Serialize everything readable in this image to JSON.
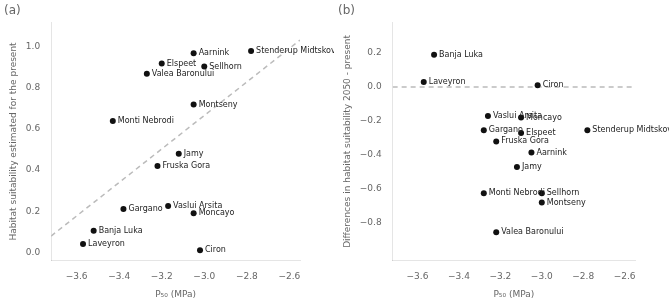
{
  "chart_data": [
    {
      "type": "scatter",
      "title": "(a)",
      "x_label": "P₅₀ (MPa)",
      "y_label": "Habitat suitability estimated for the present",
      "x": [
        -3.05,
        -2.78,
        -3.2,
        -3.0,
        -3.27,
        -3.05,
        -3.43,
        -3.12,
        -3.22,
        -3.17,
        -3.38,
        -3.05,
        -3.52,
        -3.57,
        -3.02
      ],
      "values": [
        0.97,
        0.98,
        0.92,
        0.905,
        0.87,
        0.72,
        0.64,
        0.48,
        0.42,
        0.225,
        0.21,
        0.19,
        0.105,
        0.04,
        0.01
      ],
      "annotations": [
        "Aarnink",
        "Stenderup Midtskov",
        "Elspeet",
        "Sellhorn",
        "Valea Baronului",
        "Montseny",
        "Monti Nebrodi",
        "Jamy",
        "Fruska Gora",
        "Vaslui Arsita",
        "Gargano",
        "Moncayo",
        "Banja Luka",
        "Laveyron",
        "Ciron"
      ],
      "color": "#111111",
      "marker": "circle",
      "trendline": {
        "x": [
          -3.72,
          -2.55
        ],
        "y": [
          0.0787,
          1.0336
        ],
        "color": "#bbbbbb",
        "line_style": "dashed"
      },
      "xlim": [
        -3.72,
        -2.55
      ],
      "ylim": [
        -0.04,
        1.12
      ],
      "xticks": [
        {
          "value": -3.6,
          "label": "−3.6"
        },
        {
          "value": -3.4,
          "label": "−3.4"
        },
        {
          "value": -3.2,
          "label": "−3.2"
        },
        {
          "value": -3.0,
          "label": "−3.0"
        },
        {
          "value": -2.8,
          "label": "−2.8"
        },
        {
          "value": -2.6,
          "label": "−2.6"
        }
      ],
      "yticks": [
        {
          "value": 0.0,
          "label": "0.0"
        },
        {
          "value": 0.2,
          "label": "0.2"
        },
        {
          "value": 0.4,
          "label": "0.4"
        },
        {
          "value": 0.6,
          "label": "0.6"
        },
        {
          "value": 0.8,
          "label": "0.8"
        },
        {
          "value": 1.0,
          "label": "1.0"
        }
      ],
      "grid": false
    },
    {
      "type": "scatter",
      "title": "(b)",
      "x_label": "P₅₀ (MPa)",
      "y_label": "Differences in habitat suitability 2050 - present",
      "x": [
        -3.52,
        -3.57,
        -3.02,
        -3.26,
        -3.1,
        -3.28,
        -3.1,
        -3.22,
        -3.05,
        -2.78,
        -3.12,
        -3.28,
        -3.0,
        -3.0,
        -3.22
      ],
      "values": [
        0.19,
        0.03,
        0.01,
        -0.17,
        -0.18,
        -0.255,
        -0.27,
        -0.32,
        -0.385,
        -0.255,
        -0.47,
        -0.625,
        -0.625,
        -0.68,
        -0.855
      ],
      "annotations": [
        "Banja Luka",
        "Laveyron",
        "Ciron",
        "Vaslui Arsita",
        "Moncayo",
        "Gargano",
        "Elspeet",
        "Fruska Gora",
        "Aarnink",
        "Stenderup Midtskov",
        "Jamy",
        "Monti Nebrodi",
        "Sellhorn",
        "Montseny",
        "Valea Baronului"
      ],
      "color": "#111111",
      "marker": "circle",
      "reference_line": {
        "y": 0,
        "color": "#bbbbbb",
        "line_style": "dashed"
      },
      "xlim": [
        -3.72,
        -2.55
      ],
      "ylim": [
        -1.02,
        0.38
      ],
      "xticks": [
        {
          "value": -3.6,
          "label": "−3.6"
        },
        {
          "value": -3.4,
          "label": "−3.4"
        },
        {
          "value": -3.2,
          "label": "−3.2"
        },
        {
          "value": -3.0,
          "label": "−3.0"
        },
        {
          "value": -2.8,
          "label": "−2.8"
        },
        {
          "value": -2.6,
          "label": "−2.6"
        }
      ],
      "yticks": [
        {
          "value": -0.8,
          "label": "−0.8"
        },
        {
          "value": -0.6,
          "label": "−0.6"
        },
        {
          "value": -0.4,
          "label": "−0.4"
        },
        {
          "value": -0.2,
          "label": "−0.2"
        },
        {
          "value": 0.0,
          "label": "0.0"
        },
        {
          "value": 0.2,
          "label": "0.2"
        }
      ],
      "grid": false
    }
  ]
}
